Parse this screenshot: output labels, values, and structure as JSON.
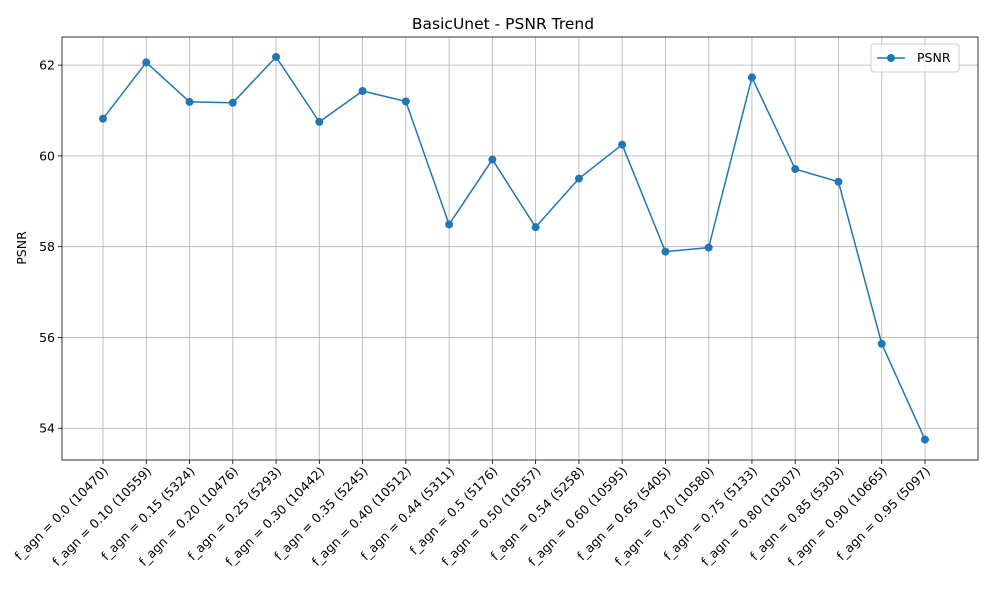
{
  "chart_data": {
    "type": "line",
    "title": "BasicUnet - PSNR Trend",
    "xlabel": "",
    "ylabel": "PSNR",
    "categories": [
      "f_agn = 0.0 (10470)",
      "f_agn = 0.10 (10559)",
      "f_agn = 0.15 (5324)",
      "f_agn = 0.20 (10476)",
      "f_agn = 0.25 (5293)",
      "f_agn = 0.30 (10442)",
      "f_agn = 0.35 (5245)",
      "f_agn = 0.40 (10512)",
      "f_agn = 0.44 (5311)",
      "f_agn = 0.5 (5176)",
      "f_agn = 0.50 (10557)",
      "f_agn = 0.54 (5258)",
      "f_agn = 0.60 (10595)",
      "f_agn = 0.65 (5405)",
      "f_agn = 0.70 (10580)",
      "f_agn = 0.75 (5133)",
      "f_agn = 0.80 (10307)",
      "f_agn = 0.85 (5303)",
      "f_agn = 0.90 (10665)",
      "f_agn = 0.95 (5097)"
    ],
    "series": [
      {
        "name": "PSNR",
        "color": "#1f77b4",
        "values": [
          60.82,
          62.06,
          61.19,
          61.17,
          62.18,
          60.75,
          61.43,
          61.2,
          58.49,
          59.92,
          58.43,
          59.5,
          60.25,
          57.89,
          57.98,
          61.73,
          59.71,
          59.43,
          55.86,
          53.75
        ]
      }
    ],
    "ylim": [
      53.3,
      62.62
    ],
    "yticks": [
      54,
      56,
      58,
      60,
      62
    ],
    "grid": true,
    "legend_position": "upper right"
  }
}
